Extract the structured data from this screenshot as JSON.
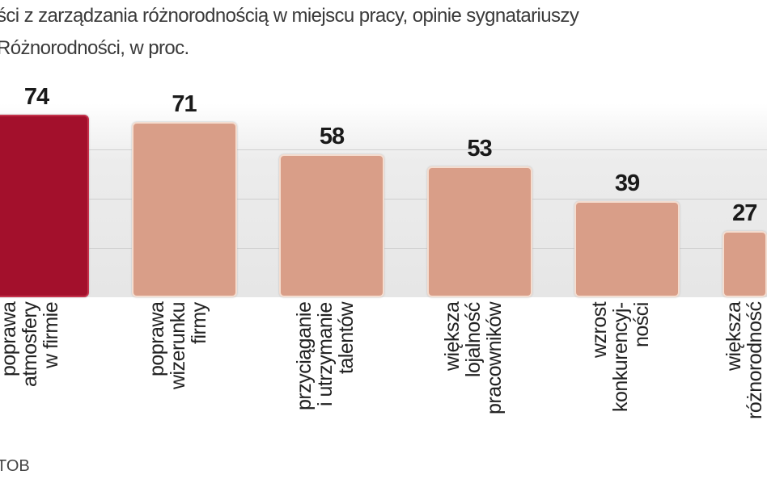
{
  "title_lines": [
    "ści z zarządzania różnorodnością w miejscu pracy, opinie sygnatariuszy",
    "Różnorodności, w proc."
  ],
  "source": "TOB",
  "chart_data": {
    "type": "bar",
    "categories": [
      "poprawa\natmosfery\nw firmie",
      "poprawa\nwizerunku\nfirmy",
      "przyciąganie\ni utrzymanie\ntalentów",
      "większa\nlojalność\npracowników",
      "wzrost\nkonkurencyj-\nności",
      "większa\nróżnorodność"
    ],
    "values": [
      74,
      71,
      58,
      53,
      39,
      27
    ],
    "value_labels": [
      "74",
      "71",
      "58",
      "53",
      "39",
      "27"
    ],
    "highlight_index": 0,
    "colors": {
      "highlight": "#a3102c",
      "bar": "#d99e88"
    },
    "ylim": [
      0,
      80
    ],
    "grid": true,
    "gridlines": [
      20,
      40,
      60
    ]
  }
}
